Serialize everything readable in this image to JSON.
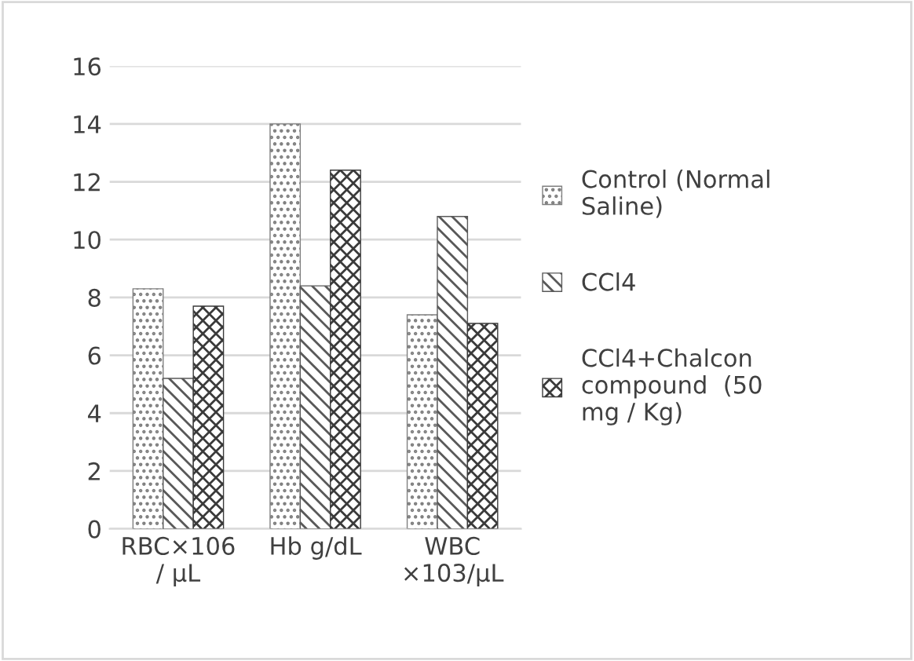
{
  "chart_data": {
    "type": "bar",
    "categories": [
      "RBC×106\n/ µL",
      "Hb g/dL",
      "WBC\n×103/µL"
    ],
    "series": [
      {
        "name": "Control (Normal\nSaline)",
        "color": "#7f7f7f",
        "values": [
          8.3,
          14.0,
          7.4
        ]
      },
      {
        "name": "CCl4",
        "color": "#595959",
        "values": [
          5.2,
          8.4,
          10.8
        ]
      },
      {
        "name": "CCl4+Chalcon\ncompound  (50\nmg / Kg)",
        "color": "#3a3a3a",
        "values": [
          7.7,
          12.4,
          7.1
        ]
      }
    ],
    "ylim": [
      0,
      16
    ],
    "yticks": [
      0,
      2,
      4,
      6,
      8,
      10,
      12,
      14,
      16
    ],
    "grid": "y",
    "legend": "right"
  }
}
